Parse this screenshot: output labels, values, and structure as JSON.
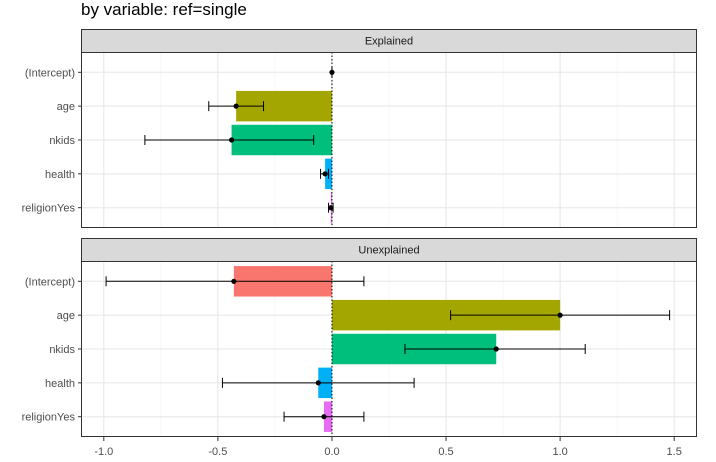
{
  "title": "by variable: ref=single",
  "chart_data": {
    "type": "bar",
    "orientation": "horizontal",
    "facets": [
      "Explained",
      "Unexplained"
    ],
    "categories": [
      "(Intercept)",
      "age",
      "nkids",
      "health",
      "religionYes"
    ],
    "category_colors": [
      "#F8766D",
      "#A3A500",
      "#00BF7D",
      "#00B0F6",
      "#E76BF3"
    ],
    "xlim": [
      -1.1,
      1.6
    ],
    "xticks": [
      -1.0,
      -0.5,
      0.0,
      0.5,
      1.0,
      1.5
    ],
    "xtick_labels": [
      "-1.0",
      "-0.5",
      "0.0",
      "0.5",
      "1.0",
      "1.5"
    ],
    "grid": true,
    "zero_line": "dotted",
    "panels": [
      {
        "name": "Explained",
        "values": [
          0.0,
          -0.42,
          -0.44,
          -0.03,
          -0.005
        ],
        "ci_low": [
          0.0,
          -0.54,
          -0.82,
          -0.05,
          -0.015
        ],
        "ci_high": [
          0.0,
          -0.3,
          -0.08,
          -0.015,
          0.005
        ]
      },
      {
        "name": "Unexplained",
        "values": [
          -0.43,
          1.0,
          0.72,
          -0.06,
          -0.035
        ],
        "ci_low": [
          -0.99,
          0.52,
          0.32,
          -0.48,
          -0.21
        ],
        "ci_high": [
          0.14,
          1.48,
          1.11,
          0.36,
          0.14
        ]
      }
    ]
  }
}
